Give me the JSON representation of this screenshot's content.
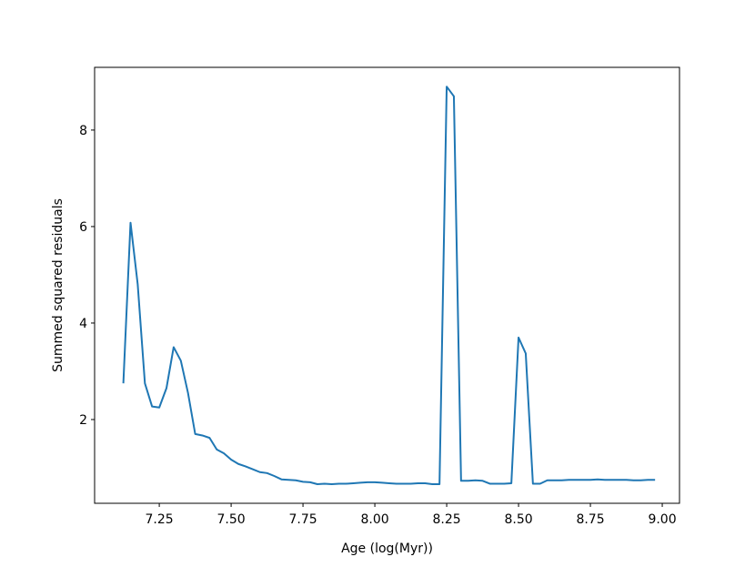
{
  "chart_data": {
    "type": "line",
    "x_label": "Age (log(Myr))",
    "y_label": "Summed squared residuals",
    "xlim": [
      7.025,
      9.06
    ],
    "ylim": [
      0.264,
      9.3
    ],
    "xticks": [
      7.25,
      {
        "value": 7.5,
        "label": "7.50"
      },
      7.75,
      {
        "value": 8.0,
        "label": "8.00"
      },
      8.25,
      {
        "value": 8.5,
        "label": "8.50"
      },
      8.75,
      {
        "value": 9.0,
        "label": "9.00"
      }
    ],
    "yticks": [
      2,
      4,
      6,
      8
    ],
    "x": [
      7.125,
      7.15,
      7.175,
      7.2,
      7.225,
      7.25,
      7.275,
      7.3,
      7.325,
      7.35,
      7.375,
      7.4,
      7.425,
      7.45,
      7.475,
      7.5,
      7.525,
      7.55,
      7.575,
      7.6,
      7.625,
      7.65,
      7.675,
      7.7,
      7.725,
      7.75,
      7.775,
      7.8,
      7.825,
      7.85,
      7.875,
      7.9,
      7.925,
      7.95,
      7.975,
      8.0,
      8.025,
      8.05,
      8.075,
      8.1,
      8.125,
      8.15,
      8.175,
      8.2,
      8.225,
      8.25,
      8.275,
      8.3,
      8.325,
      8.35,
      8.375,
      8.4,
      8.425,
      8.45,
      8.475,
      8.5,
      8.525,
      8.55,
      8.575,
      8.6,
      8.625,
      8.65,
      8.675,
      8.7,
      8.725,
      8.75,
      8.775,
      8.8,
      8.825,
      8.85,
      8.875,
      8.9,
      8.925,
      8.95,
      8.975
    ],
    "series": [
      {
        "color": "#1f77b4",
        "values": [
          2.75,
          6.08,
          4.8,
          2.75,
          2.27,
          2.25,
          2.65,
          3.5,
          3.22,
          2.55,
          1.7,
          1.67,
          1.62,
          1.38,
          1.3,
          1.17,
          1.08,
          1.03,
          0.97,
          0.91,
          0.89,
          0.83,
          0.76,
          0.75,
          0.74,
          0.71,
          0.7,
          0.66,
          0.67,
          0.66,
          0.67,
          0.67,
          0.68,
          0.69,
          0.7,
          0.7,
          0.69,
          0.68,
          0.67,
          0.67,
          0.67,
          0.68,
          0.68,
          0.66,
          0.66,
          8.9,
          8.7,
          0.73,
          0.73,
          0.74,
          0.73,
          0.67,
          0.67,
          0.67,
          0.68,
          3.7,
          3.37,
          0.67,
          0.67,
          0.74,
          0.74,
          0.74,
          0.75,
          0.75,
          0.75,
          0.75,
          0.76,
          0.75,
          0.75,
          0.75,
          0.75,
          0.74,
          0.74,
          0.75,
          0.75
        ]
      }
    ]
  }
}
